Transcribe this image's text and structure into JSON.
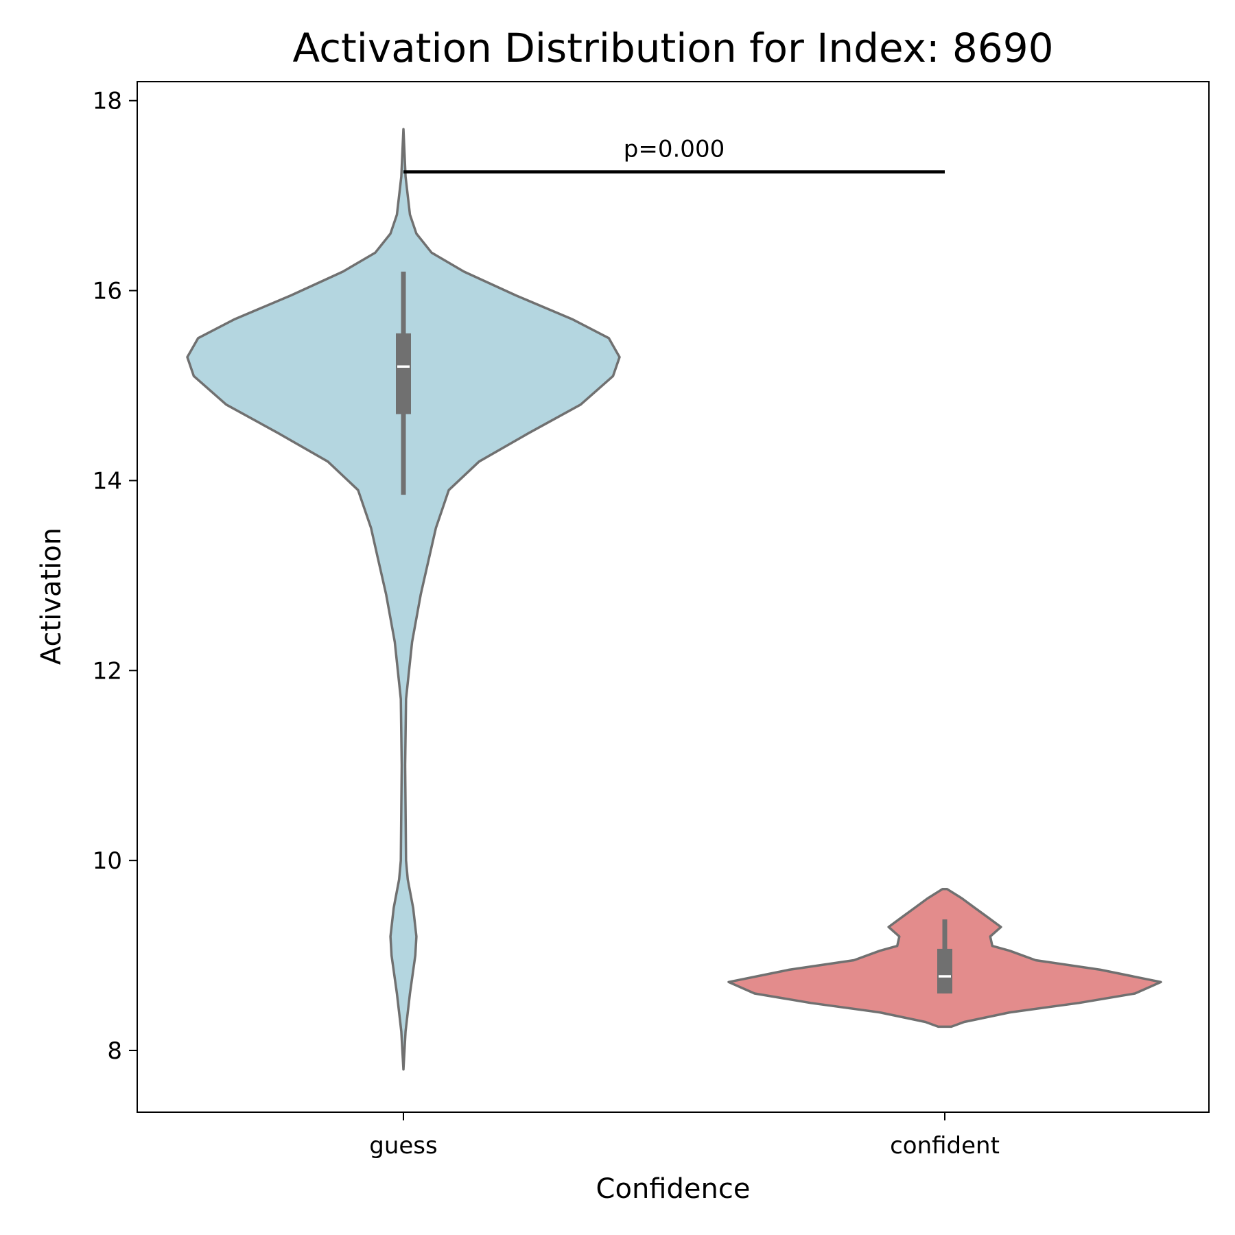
{
  "chart_data": {
    "type": "violin",
    "title": "Activation Distribution for Index: 8690",
    "xlabel": "Confidence",
    "ylabel": "Activation",
    "categories": [
      "guess",
      "confident"
    ],
    "ylim": [
      7.35,
      18.2
    ],
    "yticks": [
      8,
      10,
      12,
      14,
      16,
      18
    ],
    "grid": false,
    "legend": "none",
    "outline_color": "#707070",
    "series": [
      {
        "category": "guess",
        "color": "#b4d6e0",
        "min": 7.8,
        "max": 17.7,
        "box": {
          "q1": 14.7,
          "median": 15.2,
          "q3": 15.55,
          "whisker_low": 13.85,
          "whisker_high": 16.2
        },
        "density": [
          [
            7.8,
            0.0
          ],
          [
            8.2,
            0.01
          ],
          [
            8.6,
            0.03
          ],
          [
            9.0,
            0.055
          ],
          [
            9.2,
            0.06
          ],
          [
            9.5,
            0.045
          ],
          [
            9.8,
            0.02
          ],
          [
            10.0,
            0.012
          ],
          [
            11.0,
            0.008
          ],
          [
            11.7,
            0.012
          ],
          [
            12.3,
            0.04
          ],
          [
            12.8,
            0.08
          ],
          [
            13.2,
            0.12
          ],
          [
            13.5,
            0.15
          ],
          [
            13.9,
            0.21
          ],
          [
            14.2,
            0.35
          ],
          [
            14.5,
            0.58
          ],
          [
            14.8,
            0.82
          ],
          [
            15.1,
            0.97
          ],
          [
            15.3,
            1.0
          ],
          [
            15.5,
            0.95
          ],
          [
            15.7,
            0.78
          ],
          [
            15.95,
            0.52
          ],
          [
            16.2,
            0.28
          ],
          [
            16.4,
            0.13
          ],
          [
            16.6,
            0.06
          ],
          [
            16.8,
            0.03
          ],
          [
            17.2,
            0.01
          ],
          [
            17.7,
            0.0
          ]
        ]
      },
      {
        "category": "confident",
        "color": "#e38c8c",
        "min": 8.25,
        "max": 9.7,
        "box": {
          "q1": 8.6,
          "median": 8.78,
          "q3": 9.07,
          "whisker_low": 8.6,
          "whisker_high": 9.38
        },
        "density": [
          [
            8.25,
            0.03
          ],
          [
            8.3,
            0.09
          ],
          [
            8.4,
            0.3
          ],
          [
            8.5,
            0.62
          ],
          [
            8.6,
            0.88
          ],
          [
            8.72,
            1.0
          ],
          [
            8.85,
            0.72
          ],
          [
            8.95,
            0.42
          ],
          [
            9.05,
            0.3
          ],
          [
            9.1,
            0.22
          ],
          [
            9.2,
            0.21
          ],
          [
            9.3,
            0.26
          ],
          [
            9.4,
            0.2
          ],
          [
            9.5,
            0.14
          ],
          [
            9.6,
            0.08
          ],
          [
            9.7,
            0.01
          ]
        ]
      }
    ],
    "significance": {
      "from": "guess",
      "to": "confident",
      "y": 17.25,
      "label": "p=0.000"
    }
  }
}
